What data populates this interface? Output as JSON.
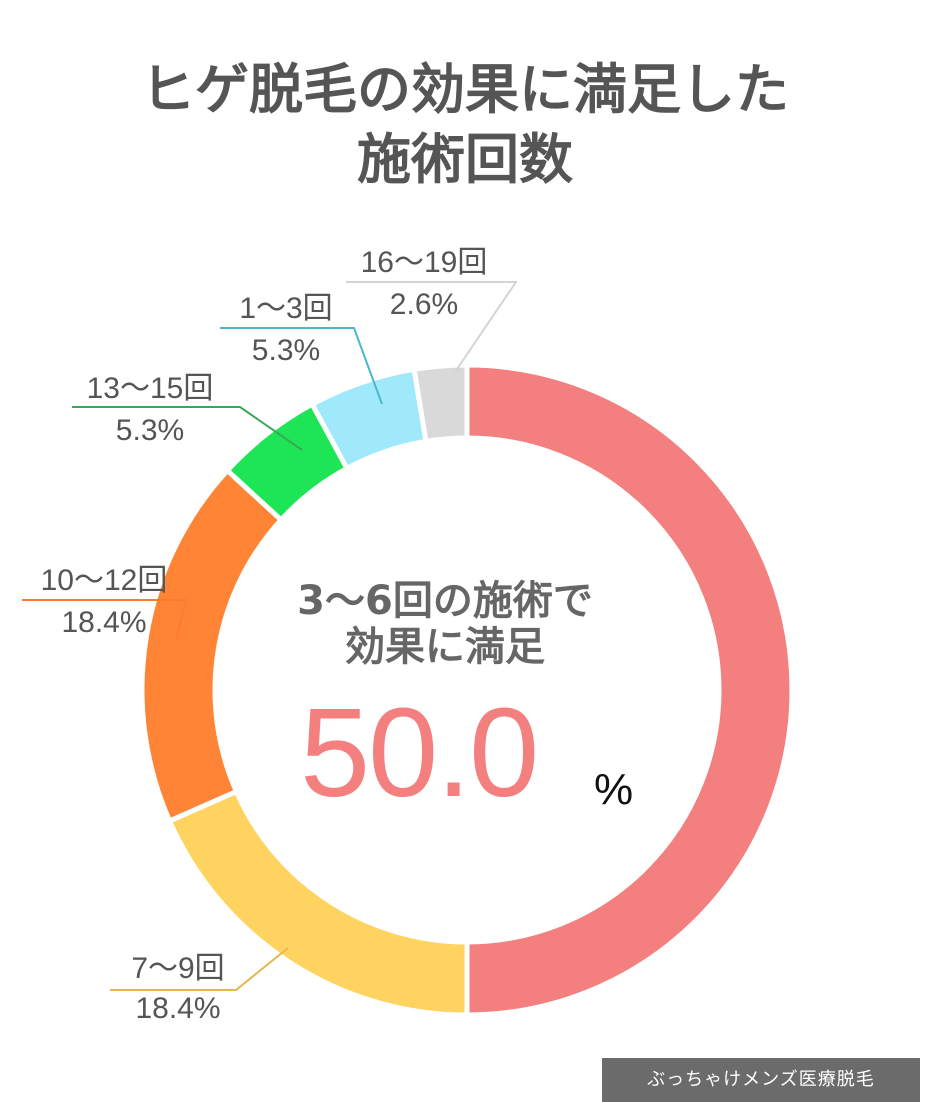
{
  "title": {
    "line1": "ヒゲ脱毛の効果に満足した",
    "line2": "施術回数"
  },
  "center": {
    "line1": "3〜6回の施術で",
    "line2": "効果に満足",
    "value": "50.0",
    "unit": "%"
  },
  "credit": "ぶっちゃけメンズ医療脱毛",
  "chart_data": {
    "type": "pie",
    "variant": "donut",
    "title": "ヒゲ脱毛の効果に満足した施術回数",
    "slices": [
      {
        "label": "3〜6回",
        "value": 50.0,
        "display": "",
        "color": "#f47f7f"
      },
      {
        "label": "7〜9回",
        "value": 18.4,
        "display": "18.4%",
        "color": "#ffd35f"
      },
      {
        "label": "10〜12回",
        "value": 18.4,
        "display": "18.4%",
        "color": "#ff8435"
      },
      {
        "label": "13〜15回",
        "value": 5.3,
        "display": "5.3%",
        "color": "#1ee556"
      },
      {
        "label": "1〜3回",
        "value": 5.3,
        "display": "5.3%",
        "color": "#a0e9fa"
      },
      {
        "label": "16〜19回",
        "value": 2.6,
        "display": "2.6%",
        "color": "#d9d9d9"
      }
    ],
    "label_colors": {
      "7〜9回": "#e6b84a",
      "10〜12回": "#ff7a2a",
      "13〜15回": "#3aa85a",
      "1〜3回": "#4db7c9",
      "16〜19回": "#d4d4d4"
    },
    "text_color": "#555555"
  }
}
